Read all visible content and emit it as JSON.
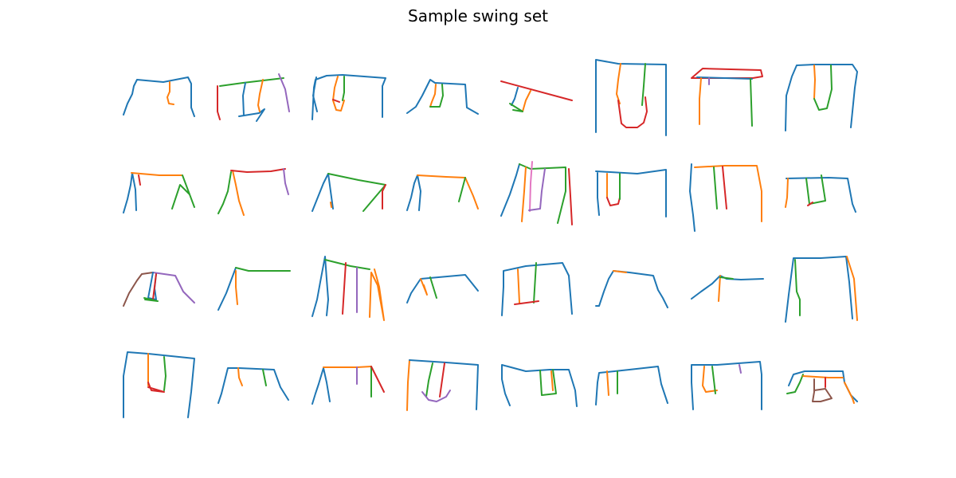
{
  "title": "Sample swing set",
  "palette": {
    "C0": "#1f77b4",
    "C1": "#ff7f0e",
    "C2": "#2ca02c",
    "C3": "#d62728",
    "C4": "#9467bd",
    "C5": "#8c564b",
    "C6": "#e377c2"
  },
  "grid": {
    "rows": 4,
    "columns": 8,
    "cell_count": 32
  }
}
